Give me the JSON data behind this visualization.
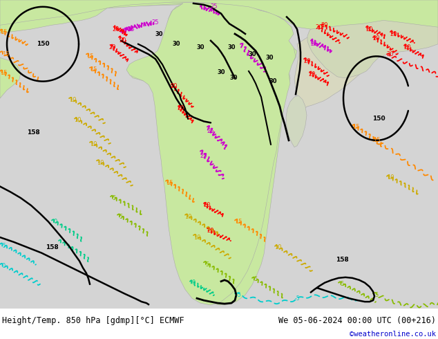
{
  "title_left": "Height/Temp. 850 hPa [gdmp][°C] ECMWF",
  "title_right": "We 05-06-2024 00:00 UTC (00+216)",
  "credit": "©weatheronline.co.uk",
  "credit_color": "#0000cc",
  "bg_color": "#ffffff",
  "ocean_color": "#d4d4d4",
  "land_green_color": "#c8e8a0",
  "land_gray_color": "#d0d0c0",
  "fig_width": 6.34,
  "fig_height": 4.9,
  "dpi": 100,
  "title_fontsize": 8.5,
  "credit_fontsize": 7.5,
  "text_color": "#000000",
  "colors": {
    "geo": "#000000",
    "t30": "#000000",
    "t25": "#cc00cc",
    "t20": "#ff0000",
    "t15": "#ff8800",
    "t10": "#ccaa00",
    "t5": "#88bb00",
    "t0": "#00cc88",
    "tn5": "#00cccc"
  }
}
